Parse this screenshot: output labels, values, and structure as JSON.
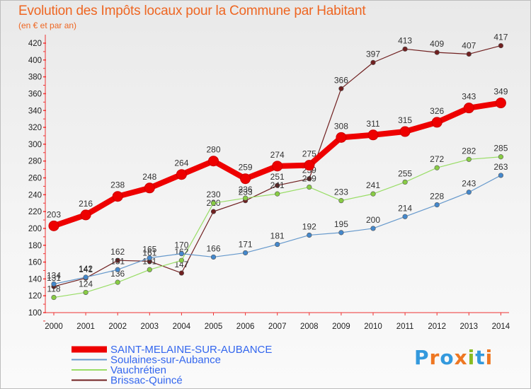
{
  "header": {
    "title": "Evolution des Impôts locaux pour la Commune par Habitant",
    "subtitle": "(en € et par an)"
  },
  "logo": {
    "text": "Proxiti",
    "colors": [
      "#3399dd",
      "#ee7722",
      "#3399dd",
      "#ee7722",
      "#88bb22",
      "#3399dd",
      "#ee7722"
    ]
  },
  "chart_data": {
    "type": "line",
    "title": "Evolution des Impôts locaux pour la Commune par Habitant",
    "subtitle": "(en € et par an)",
    "x": [
      2000,
      2001,
      2002,
      2003,
      2004,
      2005,
      2006,
      2007,
      2008,
      2009,
      2010,
      2011,
      2012,
      2013,
      2014
    ],
    "yticks": [
      100,
      120,
      140,
      160,
      180,
      200,
      220,
      240,
      260,
      280,
      300,
      320,
      340,
      360,
      380,
      400,
      420
    ],
    "ylim": [
      100,
      420
    ],
    "grid": false,
    "legend": "bottom-left",
    "series": [
      {
        "name": "Brissac-Quincé",
        "color": "#702020",
        "marker": "#702020",
        "values": [
          131,
          141,
          162,
          161,
          147,
          220,
          233,
          251,
          259,
          366,
          397,
          413,
          409,
          407,
          417
        ]
      },
      {
        "name": "Vauchrétien",
        "color": "#99dd66",
        "marker": "#88cc44",
        "values": [
          118,
          124,
          136,
          151,
          162,
          230,
          236,
          241,
          249,
          233,
          241,
          255,
          272,
          282,
          285
        ]
      },
      {
        "name": "Soulaines-sur-Aubance",
        "color": "#6699cc",
        "marker": "#4488cc",
        "values": [
          134,
          142,
          151,
          165,
          170,
          166,
          171,
          181,
          192,
          195,
          200,
          214,
          228,
          243,
          263
        ]
      },
      {
        "name": "SAINT-MELAINE-SUR-AUBANCE",
        "color": "#ee0000",
        "marker": "#ee0000",
        "values": [
          203,
          216,
          238,
          248,
          264,
          280,
          259,
          274,
          275,
          308,
          311,
          315,
          326,
          343,
          349
        ]
      }
    ],
    "legend_order": [
      {
        "name": "SAINT-MELAINE-SUR-AUBANCE",
        "color": "#ee0000",
        "text_color": "#3366ee"
      },
      {
        "name": "Soulaines-sur-Aubance",
        "color": "#6699cc",
        "text_color": "#3366ee"
      },
      {
        "name": "Vauchrétien",
        "color": "#99dd66",
        "text_color": "#3366ee"
      },
      {
        "name": "Brissac-Quincé",
        "color": "#702020",
        "text_color": "#3366ee"
      }
    ]
  }
}
